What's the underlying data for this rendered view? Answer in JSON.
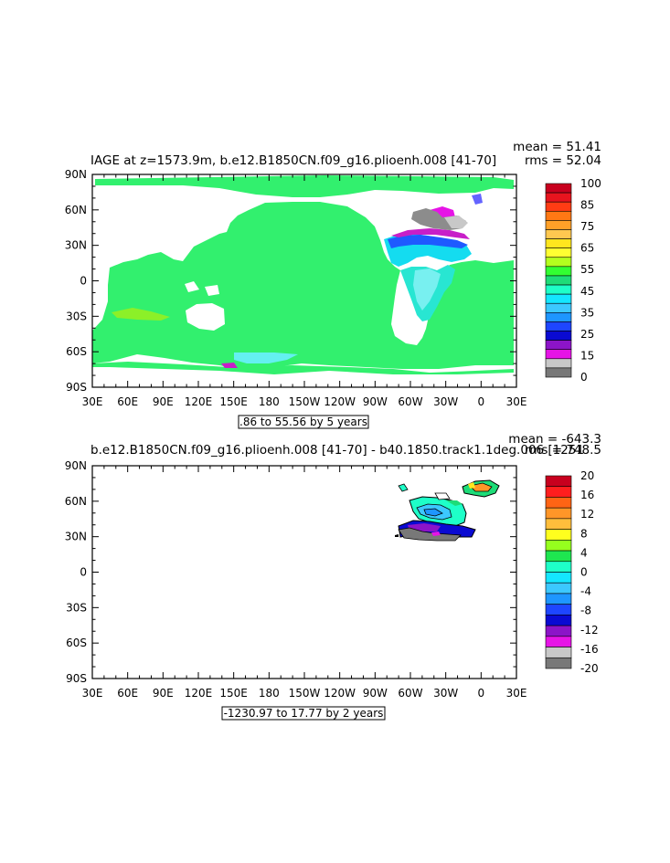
{
  "chart_data": [
    {
      "type": "heatmap",
      "title": "IAGE at z=1573.9m, b.e12.B1850CN.f09_g16.plioenh.008 [41-70]",
      "stats": {
        "mean_label": "mean = 51.41",
        "rms_label": "rms = 52.04",
        "mean": 51.41,
        "rms": 52.04
      },
      "contour_info": ".86 to 55.56 by 5 years",
      "x_ticks": [
        "30E",
        "60E",
        "90E",
        "120E",
        "150E",
        "180",
        "150W",
        "120W",
        "90W",
        "60W",
        "30W",
        "0",
        "30E"
      ],
      "y_ticks": [
        "90N",
        "60N",
        "30N",
        "0",
        "30S",
        "60S",
        "90S"
      ],
      "xlim": [
        30,
        390
      ],
      "ylim": [
        -90,
        90
      ],
      "colorbar": {
        "labels": [
          "100",
          "85",
          "75",
          "65",
          "55",
          "45",
          "35",
          "25",
          "15",
          "0"
        ],
        "colors": [
          "#c8001e",
          "#e8141e",
          "#ff3c14",
          "#ff7814",
          "#ffa028",
          "#ffc850",
          "#ffe61e",
          "#ffff32",
          "#b4ff1e",
          "#32ff32",
          "#1edc78",
          "#1effc8",
          "#14e6ff",
          "#3cc8ff",
          "#1e96ff",
          "#1e46ff",
          "#0a0ad2",
          "#8c14c8",
          "#e614e6",
          "#c8c8c8",
          "#787878"
        ]
      },
      "regions": {
        "pacific_indian": 52,
        "atlantic_south": 45,
        "north_atlantic": 20,
        "labrador_sea": 5
      }
    },
    {
      "type": "heatmap",
      "title": "b.e12.B1850CN.f09_g16.plioenh.008 [41-70] - b40.1850.track1.1deg.006 [1251",
      "stats": {
        "mean_label": "mean = -643.3",
        "rms_label": "rms = 748.5",
        "mean": -643.3,
        "rms": 748.5
      },
      "contour_info": "-1230.97 to 17.77 by 2 years",
      "x_ticks": [
        "30E",
        "60E",
        "90E",
        "120E",
        "150E",
        "180",
        "150W",
        "120W",
        "90W",
        "60W",
        "30W",
        "0",
        "30E"
      ],
      "y_ticks": [
        "90N",
        "60N",
        "30N",
        "0",
        "30S",
        "60S",
        "90S"
      ],
      "xlim": [
        30,
        390
      ],
      "ylim": [
        -90,
        90
      ],
      "colorbar": {
        "labels": [
          "20",
          "16",
          "12",
          "8",
          "4",
          "0",
          "-4",
          "-8",
          "-12",
          "-16",
          "-20"
        ],
        "colors": [
          "#c8001e",
          "#ff1e1e",
          "#ff6414",
          "#ff9628",
          "#ffbe3c",
          "#ffff1e",
          "#96ff1e",
          "#1ee650",
          "#1effc8",
          "#14e6ff",
          "#3cc8ff",
          "#1e96ff",
          "#1e46ff",
          "#0a0ad2",
          "#8c14c8",
          "#e614e6",
          "#c8c8c8",
          "#787878"
        ]
      }
    }
  ]
}
